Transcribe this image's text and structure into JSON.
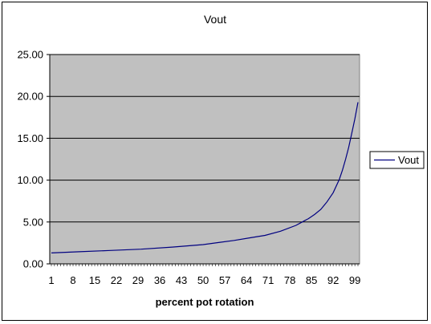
{
  "chart_data": {
    "type": "line",
    "title": "Vout",
    "xlabel": "percent pot rotation",
    "ylabel": "",
    "ylim": [
      0,
      25
    ],
    "yticks": [
      "0.00",
      "5.00",
      "10.00",
      "15.00",
      "20.00",
      "25.00"
    ],
    "xticks": [
      "1",
      "8",
      "15",
      "22",
      "29",
      "36",
      "43",
      "50",
      "57",
      "64",
      "71",
      "78",
      "85",
      "92",
      "99"
    ],
    "x_range": [
      1,
      100
    ],
    "grid": "horizontal",
    "plot_background": "#c0c0c0",
    "legend_position": "right",
    "series": [
      {
        "name": "Vout",
        "color": "#000080",
        "x": [
          1,
          10,
          20,
          30,
          40,
          50,
          55,
          60,
          65,
          70,
          75,
          80,
          82,
          84,
          86,
          88,
          90,
          92,
          94,
          95,
          96,
          97,
          98,
          99,
          100
        ],
        "values": [
          1.3,
          1.45,
          1.6,
          1.75,
          2.0,
          2.3,
          2.55,
          2.8,
          3.1,
          3.4,
          3.9,
          4.6,
          5.0,
          5.4,
          5.9,
          6.5,
          7.4,
          8.5,
          10.1,
          11.2,
          12.5,
          13.9,
          15.6,
          17.3,
          19.3
        ]
      }
    ]
  }
}
